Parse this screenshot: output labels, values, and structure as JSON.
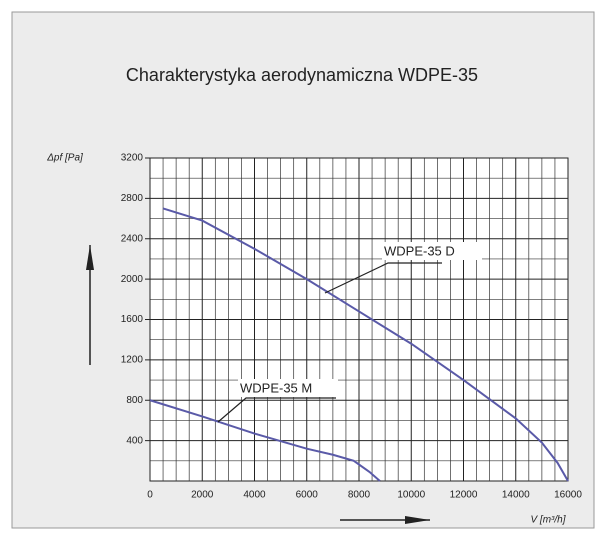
{
  "chart_data": {
    "type": "line",
    "title": "Charakterystyka aerodynamiczna  WDPE-35",
    "y_label": "Δpf [Pa]",
    "x_label": "V [m³/h]",
    "annotations": [
      "WDPE-35 D",
      "WDPE-35 M"
    ],
    "xlim": [
      0,
      16000
    ],
    "xticks": [
      0,
      2000,
      4000,
      6000,
      8000,
      10000,
      12000,
      14000,
      16000
    ],
    "ylim": [
      0,
      3200
    ],
    "yticks": [
      400,
      800,
      1200,
      1600,
      2000,
      2400,
      2800,
      3200
    ],
    "grid": true,
    "series": [
      {
        "color": "#5a5aa8",
        "x": [
          500,
          2000,
          4000,
          6000,
          8000,
          10000,
          12000,
          14000,
          15000,
          15600,
          16000
        ],
        "values": [
          2700,
          2580,
          2300,
          2000,
          1680,
          1360,
          1000,
          620,
          380,
          180,
          0
        ]
      },
      {
        "color": "#5a5aa8",
        "x": [
          0,
          2000,
          4000,
          6000,
          7000,
          7800,
          8400,
          8800
        ],
        "values": [
          800,
          640,
          470,
          320,
          260,
          200,
          90,
          0
        ]
      }
    ]
  }
}
